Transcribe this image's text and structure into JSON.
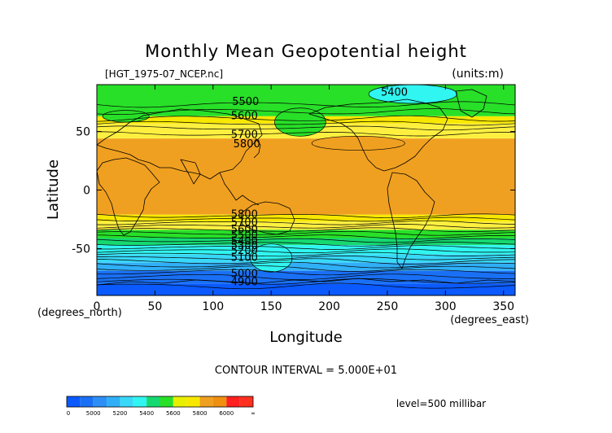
{
  "chart_data": {
    "type": "heatmap",
    "title": "Monthly Mean Geopotential height",
    "file_label": "[HGT_1975-07_NCEP.nc]",
    "units_label": "(units:m)",
    "xlabel": "Longitude",
    "ylabel": "Latitude",
    "x_units_label": "(degrees_east)",
    "y_units_label": "(degrees_north)",
    "xlim": [
      0,
      360
    ],
    "ylim": [
      -90,
      90
    ],
    "x_ticks": [
      0,
      50,
      100,
      150,
      200,
      250,
      300,
      350
    ],
    "y_ticks": [
      50,
      0,
      -50
    ],
    "contour_interval_text": "CONTOUR INTERVAL = 5.000E+01",
    "level_text": "level=500 millibar",
    "colorbar": {
      "bins": [
        {
          "from": 0,
          "to": 4900,
          "color": "#0a5aff"
        },
        {
          "from": 4900,
          "to": 5000,
          "color": "#1a70f5"
        },
        {
          "from": 5000,
          "to": 5100,
          "color": "#2d8ff5"
        },
        {
          "from": 5100,
          "to": 5200,
          "color": "#30aff7"
        },
        {
          "from": 5200,
          "to": 5300,
          "color": "#38d8f8"
        },
        {
          "from": 5300,
          "to": 5400,
          "color": "#30f5f0"
        },
        {
          "from": 5400,
          "to": 5500,
          "color": "#16d870"
        },
        {
          "from": 5500,
          "to": 5600,
          "color": "#28e028"
        },
        {
          "from": 5600,
          "to": 5700,
          "color": "#e8f000"
        },
        {
          "from": 5700,
          "to": 5800,
          "color": "#f8e800"
        },
        {
          "from": 5800,
          "to": 5900,
          "color": "#f0a020"
        },
        {
          "from": 5900,
          "to": 6000,
          "color": "#f09010"
        },
        {
          "from": 6000,
          "to": 6100,
          "color": "#ff2020"
        },
        {
          "from": 6100,
          "to": 99999,
          "color": "#ff3020"
        }
      ],
      "tick_labels": [
        "0",
        "5000",
        "5200",
        "5400",
        "5600",
        "5800",
        "6000",
        "∞"
      ]
    },
    "bands": [
      {
        "lat_top": 90,
        "lat_bottom": 63,
        "value": 5500,
        "color": "#28e028"
      },
      {
        "lat_top": 63,
        "lat_bottom": 57,
        "value": 5700,
        "color": "#f8e800"
      },
      {
        "lat_top": 57,
        "lat_bottom": 44,
        "value": 5750,
        "color": "#fff040"
      },
      {
        "lat_top": 44,
        "lat_bottom": -21,
        "value": 5850,
        "color": "#f0a020"
      },
      {
        "lat_top": -21,
        "lat_bottom": -27,
        "value": 5800,
        "color": "#f8e800"
      },
      {
        "lat_top": -27,
        "lat_bottom": -34,
        "value": 5700,
        "color": "#fff040"
      },
      {
        "lat_top": -34,
        "lat_bottom": -41,
        "value": 5600,
        "color": "#28e028"
      },
      {
        "lat_top": -41,
        "lat_bottom": -47,
        "value": 5500,
        "color": "#16d870"
      },
      {
        "lat_top": -47,
        "lat_bottom": -55,
        "value": 5400,
        "color": "#30f5f0"
      },
      {
        "lat_top": -55,
        "lat_bottom": -62,
        "value": 5250,
        "color": "#38d8f8"
      },
      {
        "lat_top": -62,
        "lat_bottom": -69,
        "value": 5150,
        "color": "#30aff7"
      },
      {
        "lat_top": -69,
        "lat_bottom": -80,
        "value": 5000,
        "color": "#1a70f5"
      },
      {
        "lat_top": -80,
        "lat_bottom": -90,
        "value": 4900,
        "color": "#0a5aff"
      }
    ],
    "regions": [
      {
        "name": "polar-low-5400",
        "lon": 272,
        "lat": 82,
        "rlon": 38,
        "rlat": 8,
        "value": 5400,
        "color": "#30f5f0"
      },
      {
        "name": "trough-east-asia",
        "lon": 175,
        "lat": 58,
        "rlon": 22,
        "rlat": 12,
        "value": 5500,
        "color": "#28e028"
      },
      {
        "name": "cold-pool-europe",
        "lon": 25,
        "lat": 63,
        "rlon": 20,
        "rlat": 5,
        "value": 5600,
        "color": "#28e028"
      },
      {
        "name": "high-pacific",
        "lon": 225,
        "lat": 40,
        "rlon": 40,
        "rlat": 6,
        "value": 5850,
        "color": "#f0a020"
      },
      {
        "name": "southern-cyan-tongue",
        "lon": 150,
        "lat": -58,
        "rlon": 18,
        "rlat": 12,
        "value": 5350,
        "color": "#30f5f0"
      }
    ],
    "contour_lines_lat": [
      73,
      67,
      61,
      57,
      53,
      48,
      -22,
      -25,
      -28,
      -31,
      -34,
      -37,
      -40,
      -43,
      -46,
      -49,
      -52,
      -55,
      -58,
      -61,
      -64,
      -67,
      -70,
      -74,
      -78,
      -82
    ],
    "contour_labels": [
      {
        "text": "5400",
        "lon": 256,
        "lat": 84
      },
      {
        "text": "5500",
        "lon": 128,
        "lat": 76
      },
      {
        "text": "5600",
        "lon": 127,
        "lat": 64
      },
      {
        "text": "5700",
        "lon": 127,
        "lat": 48
      },
      {
        "text": "5800",
        "lon": 129,
        "lat": 40
      },
      {
        "text": "5800",
        "lon": 127,
        "lat": -20
      },
      {
        "text": "5700",
        "lon": 127,
        "lat": -27
      },
      {
        "text": "5600",
        "lon": 127,
        "lat": -33
      },
      {
        "text": "5500",
        "lon": 127,
        "lat": -38
      },
      {
        "text": "5400",
        "lon": 127,
        "lat": -43
      },
      {
        "text": "5300",
        "lon": 127,
        "lat": -47
      },
      {
        "text": "5200",
        "lon": 127,
        "lat": -51
      },
      {
        "text": "5100",
        "lon": 127,
        "lat": -57
      },
      {
        "text": "5000",
        "lon": 127,
        "lat": -71
      },
      {
        "text": "4900",
        "lon": 127,
        "lat": -78
      }
    ]
  }
}
